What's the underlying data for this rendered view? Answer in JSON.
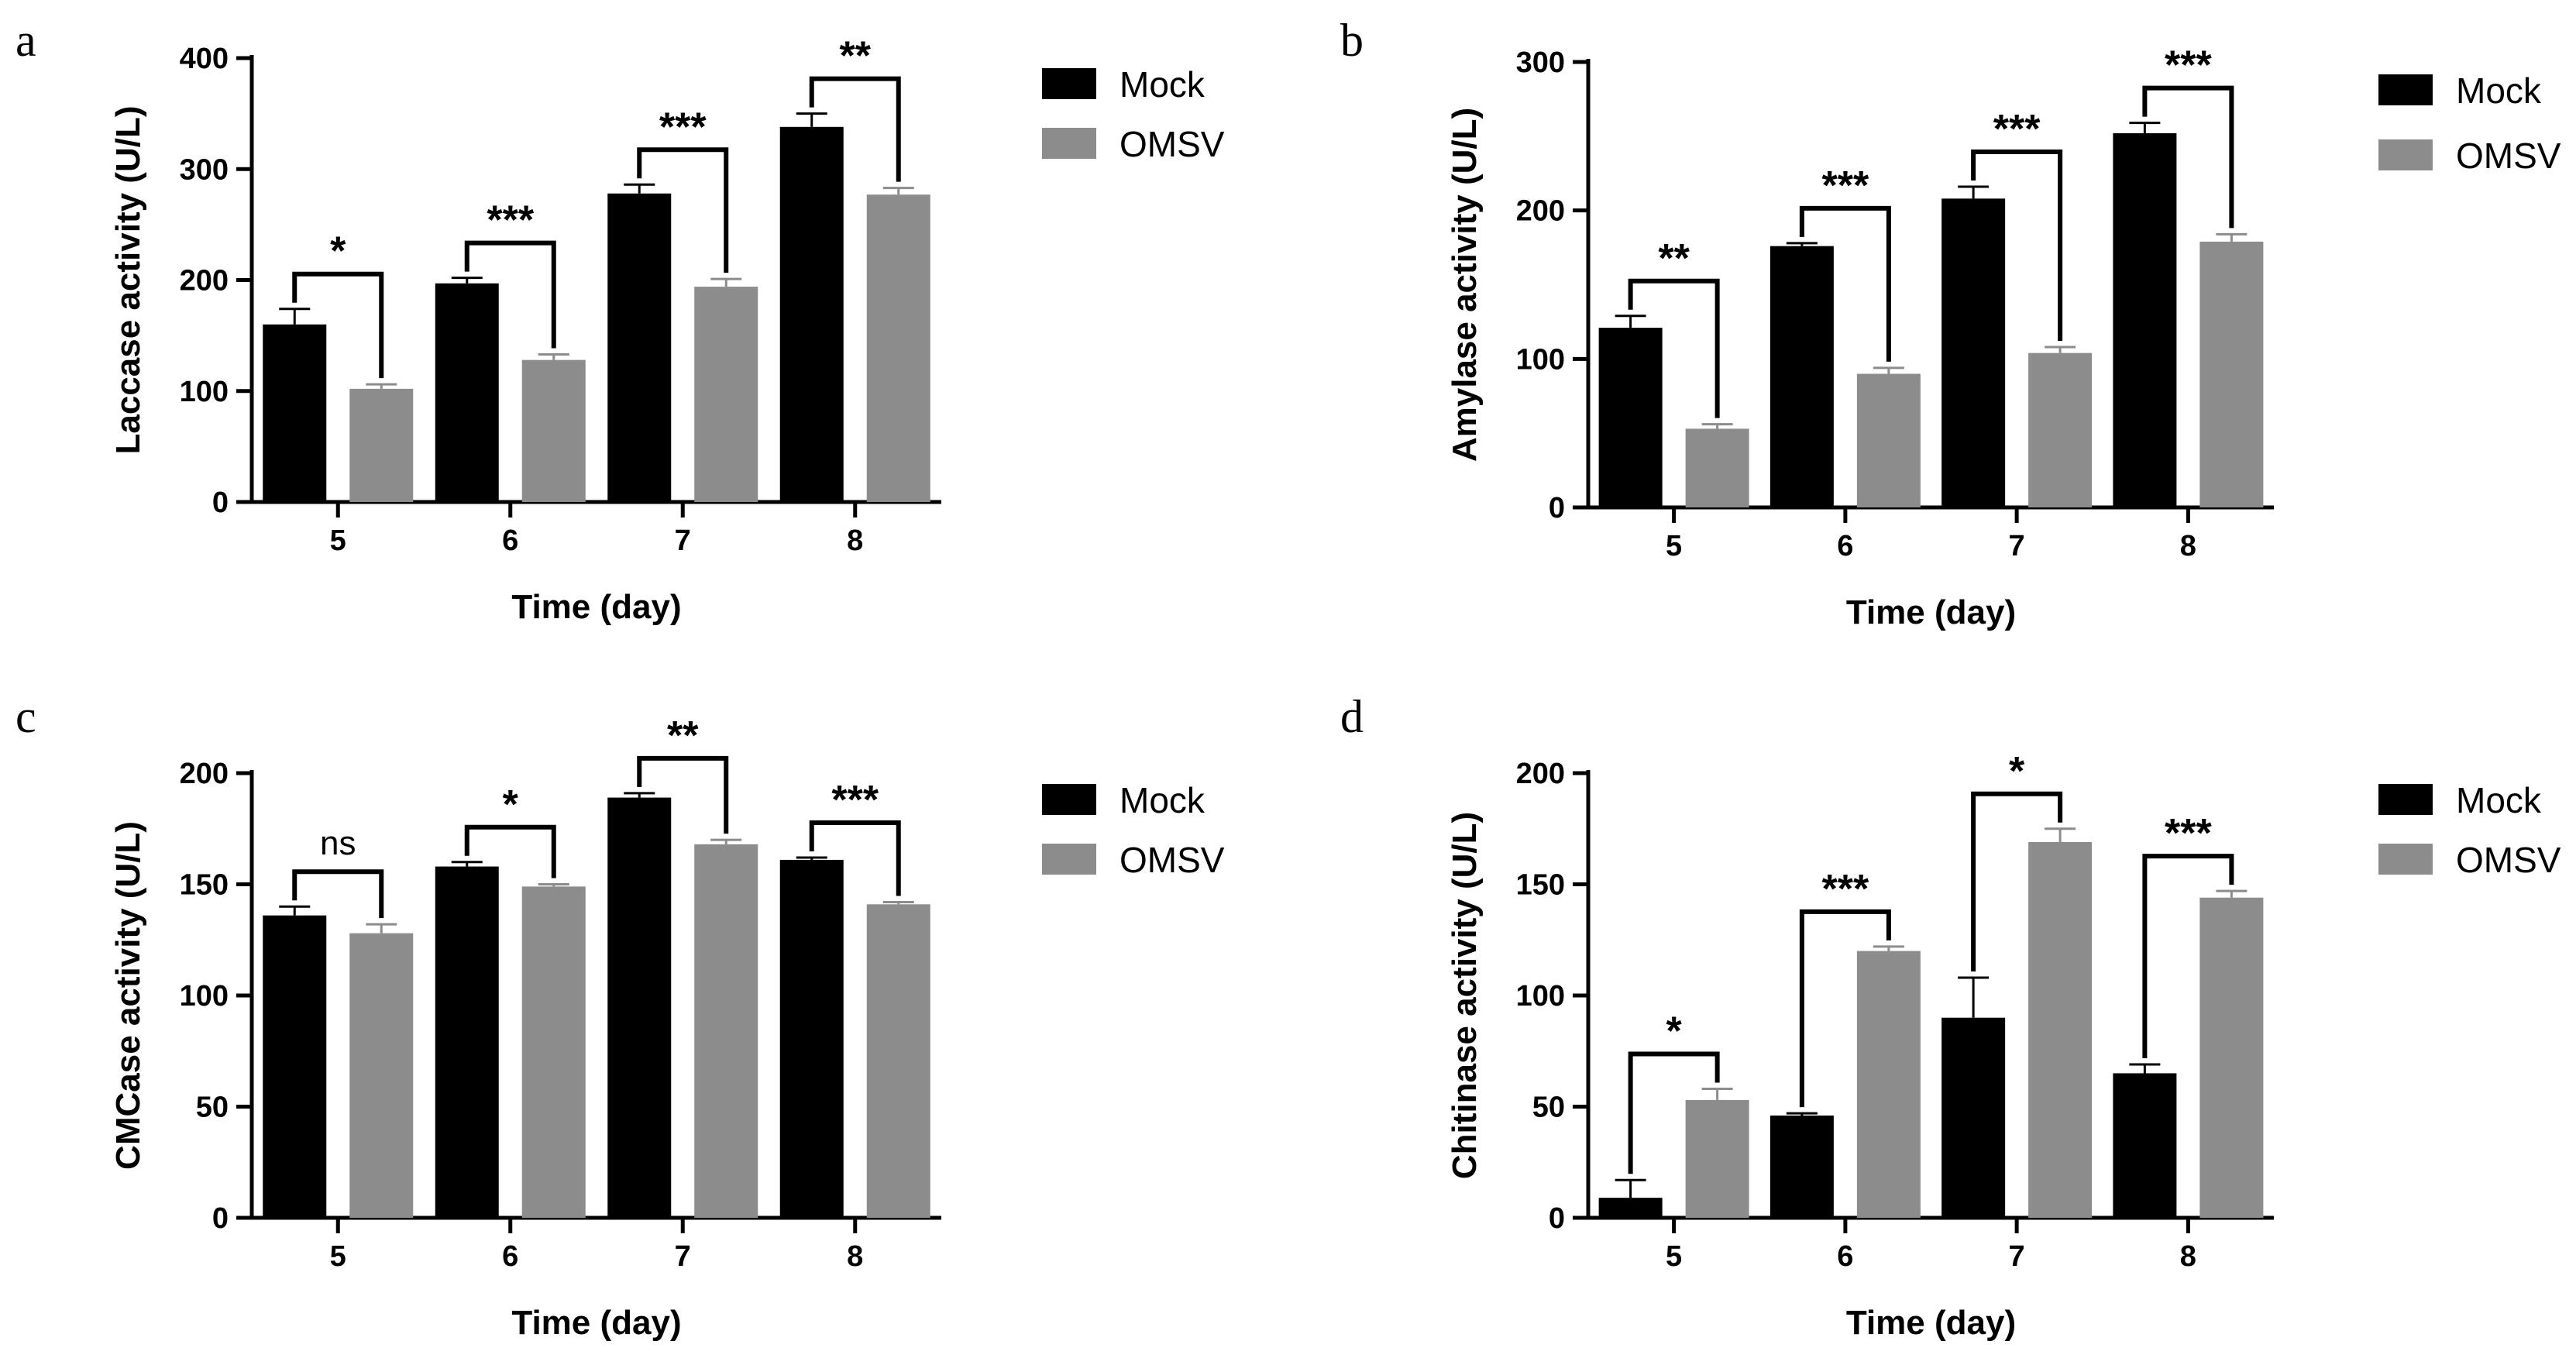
{
  "chart_data": [
    {
      "panel": "a",
      "type": "bar",
      "categories": [
        "5",
        "6",
        "7",
        "8"
      ],
      "series": [
        {
          "name": "Mock",
          "values": [
            160,
            197,
            278,
            338
          ],
          "errors": [
            14,
            5,
            8,
            12
          ]
        },
        {
          "name": "OMSV",
          "values": [
            102,
            128,
            194,
            277
          ],
          "errors": [
            4,
            5,
            7,
            6
          ]
        }
      ],
      "significance": [
        "*",
        "***",
        "***",
        "**"
      ],
      "xlabel": "Time (day)",
      "ylabel": "Laccase activity (U/L)",
      "ylim": [
        0,
        400
      ],
      "yticks": [
        0,
        100,
        200,
        300,
        400
      ],
      "legend": "top-right"
    },
    {
      "panel": "b",
      "type": "bar",
      "categories": [
        "5",
        "6",
        "7",
        "8"
      ],
      "series": [
        {
          "name": "Mock",
          "values": [
            121,
            176,
            208,
            252
          ],
          "errors": [
            8,
            2,
            8,
            7
          ]
        },
        {
          "name": "OMSV",
          "values": [
            53,
            90,
            104,
            179
          ],
          "errors": [
            3,
            4,
            4,
            5
          ]
        }
      ],
      "significance": [
        "**",
        "***",
        "***",
        "***"
      ],
      "xlabel": "Time (day)",
      "ylabel": "Amylase activity (U/L)",
      "ylim": [
        0,
        300
      ],
      "yticks": [
        0,
        100,
        200,
        300
      ],
      "legend": "top-right"
    },
    {
      "panel": "c",
      "type": "bar",
      "categories": [
        "5",
        "6",
        "7",
        "8"
      ],
      "series": [
        {
          "name": "Mock",
          "values": [
            136,
            158,
            189,
            161
          ],
          "errors": [
            4,
            2,
            2,
            1
          ]
        },
        {
          "name": "OMSV",
          "values": [
            128,
            149,
            168,
            141
          ],
          "errors": [
            4,
            1,
            2,
            1
          ]
        }
      ],
      "significance": [
        "ns",
        "*",
        "**",
        "***"
      ],
      "xlabel": "Time (day)",
      "ylabel": "CMCase activity (U/L)",
      "ylim": [
        0,
        200
      ],
      "yticks": [
        0,
        50,
        100,
        150,
        200
      ],
      "legend": "top-right"
    },
    {
      "panel": "d",
      "type": "bar",
      "categories": [
        "5",
        "6",
        "7",
        "8"
      ],
      "series": [
        {
          "name": "Mock",
          "values": [
            9,
            46,
            90,
            65
          ],
          "errors": [
            8,
            1,
            18,
            4
          ]
        },
        {
          "name": "OMSV",
          "values": [
            53,
            120,
            169,
            144
          ],
          "errors": [
            5,
            2,
            6,
            3
          ]
        }
      ],
      "significance": [
        "*",
        "***",
        "*",
        "***"
      ],
      "xlabel": "Time (day)",
      "ylabel": "Chitinase activity (U/L)",
      "ylim": [
        0,
        200
      ],
      "yticks": [
        0,
        50,
        100,
        150,
        200
      ],
      "legend": "top-right"
    }
  ],
  "colors": {
    "mock": "#000000",
    "omsv": "#8c8c8c"
  }
}
